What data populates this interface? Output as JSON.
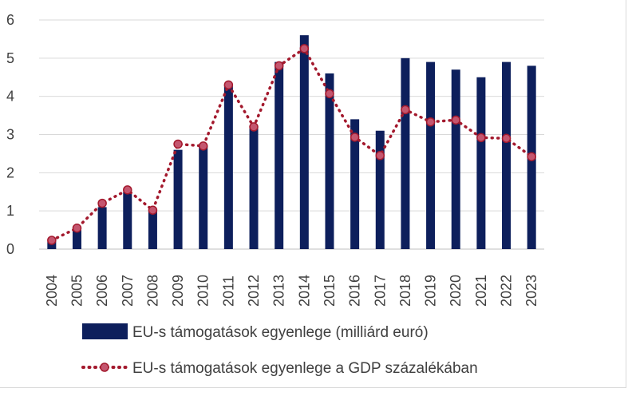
{
  "chart_data": {
    "type": "bar+line",
    "title": "",
    "xlabel": "",
    "ylabel": "",
    "ylim": [
      0,
      6
    ],
    "yticks": [
      0,
      1,
      2,
      3,
      4,
      5,
      6
    ],
    "grid": true,
    "legend_position": "bottom",
    "categories": [
      "2004",
      "2005",
      "2006",
      "2007",
      "2008",
      "2009",
      "2010",
      "2011",
      "2012",
      "2013",
      "2014",
      "2015",
      "2016",
      "2017",
      "2018",
      "2019",
      "2020",
      "2021",
      "2022",
      "2023"
    ],
    "series": [
      {
        "name": "EU-s támogatások egyenlege (milliárd euró)",
        "type": "bar",
        "color": "#0d1f5c",
        "values": [
          0.2,
          0.5,
          1.1,
          1.5,
          1.0,
          2.6,
          2.7,
          4.3,
          3.2,
          4.9,
          5.6,
          4.6,
          3.4,
          3.1,
          5.0,
          4.9,
          4.7,
          4.5,
          4.9,
          4.8
        ]
      },
      {
        "name": "EU-s támogatások egyenlege a GDP százalékában",
        "type": "line",
        "style": "dotted",
        "color": "#a3192d",
        "marker_color": "#c4566f",
        "values": [
          0.23,
          0.55,
          1.2,
          1.55,
          1.02,
          2.75,
          2.7,
          4.3,
          3.2,
          4.8,
          5.25,
          4.07,
          2.93,
          2.45,
          3.65,
          3.33,
          3.38,
          2.92,
          2.9,
          2.42
        ]
      }
    ]
  }
}
